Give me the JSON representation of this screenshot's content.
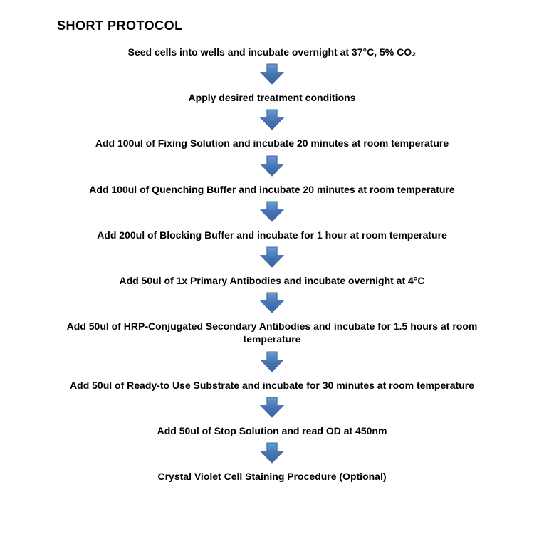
{
  "title": "SHORT PROTOCOL",
  "arrow": {
    "fill": "#4776b5",
    "stroke": "#3d6aa3",
    "stroke_width": 1,
    "width": 34,
    "height": 30
  },
  "text_color": "#000000",
  "background_color": "#ffffff",
  "step_fontsize": 14,
  "title_fontsize": 18,
  "steps": [
    "Seed cells into wells and incubate overnight at 37°C, 5% CO₂",
    "Apply desired treatment conditions",
    "Add 100ul of Fixing Solution and incubate 20 minutes at room temperature",
    "Add 100ul of Quenching Buffer and incubate 20 minutes at room temperature",
    "Add 200ul of Blocking Buffer and incubate for 1 hour at room temperature",
    "Add 50ul of 1x Primary Antibodies and incubate overnight at 4°C",
    "Add 50ul of HRP-Conjugated Secondary Antibodies and incubate for 1.5 hours at room temperature",
    "Add 50ul of Ready-to Use Substrate and incubate for 30 minutes at room temperature",
    "Add 50ul of Stop Solution and read OD at 450nm",
    "Crystal Violet Cell Staining Procedure (Optional)"
  ]
}
